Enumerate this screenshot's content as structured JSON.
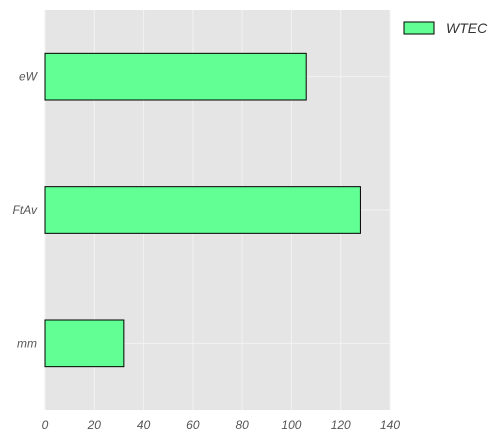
{
  "chart_data": {
    "type": "bar",
    "orientation": "horizontal",
    "categories": [
      "eW",
      "FtAv",
      "mm"
    ],
    "series": [
      {
        "name": "WTEC",
        "values": [
          106,
          128,
          32
        ]
      }
    ],
    "xlim": [
      0,
      140
    ],
    "xticks": [
      "0",
      "20",
      "40",
      "60",
      "80",
      "100",
      "120",
      "140"
    ],
    "grid": true,
    "legend_position": "top-right-outside",
    "colors": {
      "bar": "#61ff94",
      "bar_edge": "#000000",
      "plot_bg": "#e5e5e5",
      "grid": "#f2f2f2"
    }
  }
}
